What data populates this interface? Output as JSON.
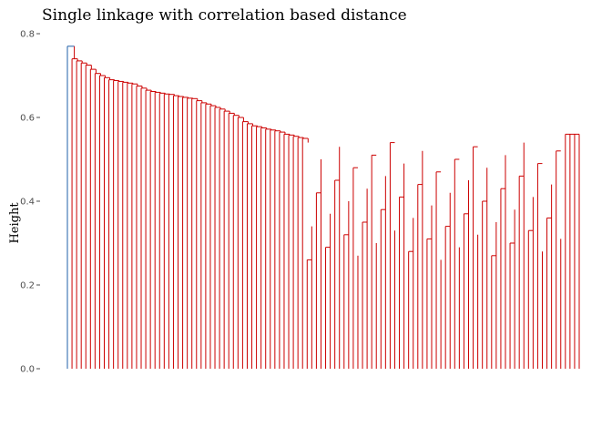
{
  "chart_data": {
    "type": "dendrogram",
    "title": "Single linkage with correlation based distance",
    "xlabel": "",
    "ylabel": "Height",
    "ylim": [
      0,
      0.8
    ],
    "yticks": [
      0.0,
      0.2,
      0.4,
      0.6,
      0.8
    ],
    "ytick_labels": [
      "0.0",
      "0.2",
      "0.4",
      "0.6",
      "0.8"
    ],
    "leaf_count": 112,
    "grid": false,
    "colors": {
      "main_branch": "#cc0000",
      "outlier_branch": "#1f5fa8",
      "axis": "#4d4d4d"
    },
    "root_height": 0.77,
    "outlier_leaf_height": 0.0,
    "chain_heights": [
      0.74,
      0.735,
      0.73,
      0.725,
      0.715,
      0.705,
      0.7,
      0.695,
      0.69,
      0.688,
      0.686,
      0.684,
      0.682,
      0.68,
      0.675,
      0.67,
      0.665,
      0.662,
      0.66,
      0.658,
      0.656,
      0.655,
      0.652,
      0.65,
      0.648,
      0.646,
      0.645,
      0.64,
      0.635,
      0.632,
      0.628,
      0.624,
      0.62,
      0.615,
      0.61,
      0.605,
      0.6,
      0.59,
      0.585,
      0.58,
      0.578,
      0.575,
      0.572,
      0.57,
      0.568,
      0.565,
      0.56,
      0.558,
      0.555,
      0.552,
      0.55
    ],
    "right_block_height": 0.56,
    "right_sub_height": 0.55,
    "right_leaves": 4
  }
}
